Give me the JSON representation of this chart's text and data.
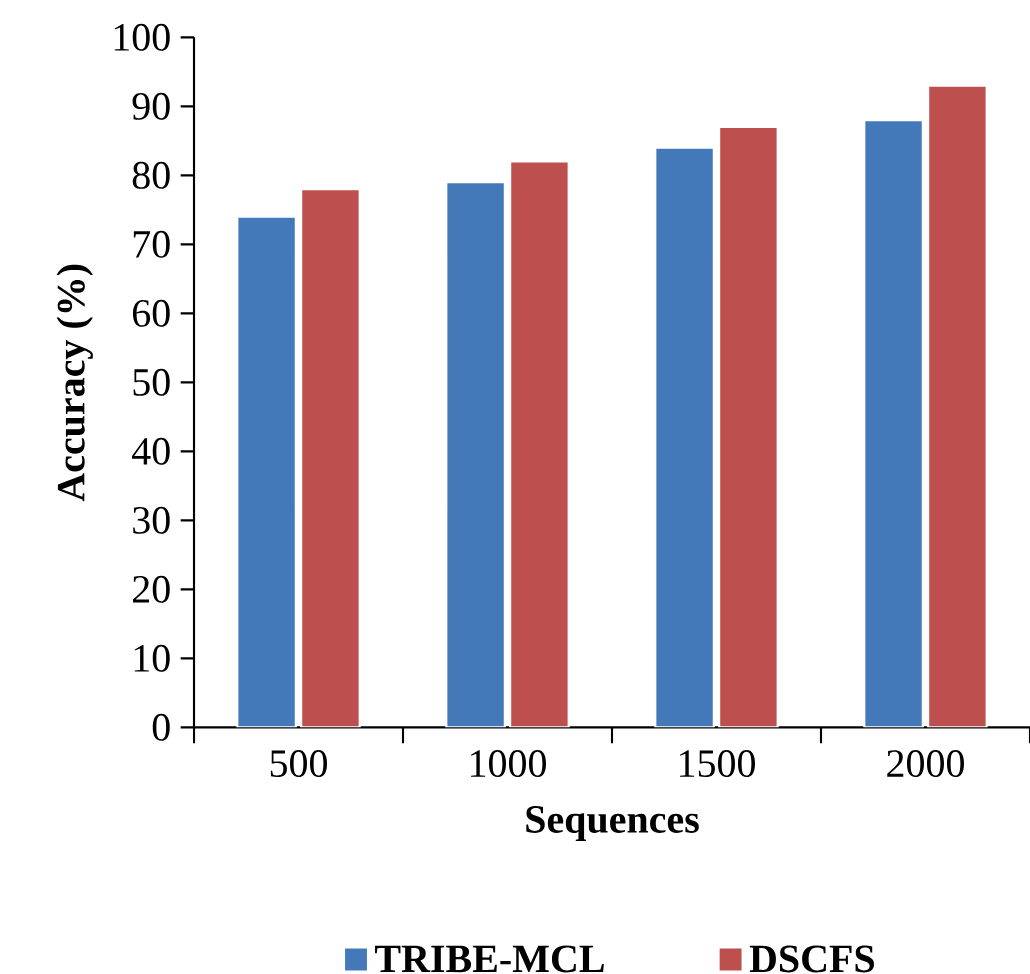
{
  "chart_data": {
    "type": "bar",
    "xlabel": "Sequences",
    "ylabel": "Accuracy (%)",
    "categories": [
      "500",
      "1000",
      "1500",
      "2000"
    ],
    "series": [
      {
        "name": "TRIBE-MCL",
        "color": "#4479b9",
        "values": [
          74,
          79,
          84,
          88
        ]
      },
      {
        "name": "DSCFS",
        "color": "#bd4f4e",
        "values": [
          78,
          82,
          87,
          93
        ]
      }
    ],
    "ylim": [
      0,
      100
    ],
    "yticks": [
      0,
      10,
      20,
      30,
      40,
      50,
      60,
      70,
      80,
      90,
      100
    ],
    "grid": false,
    "legend": "bottom"
  }
}
